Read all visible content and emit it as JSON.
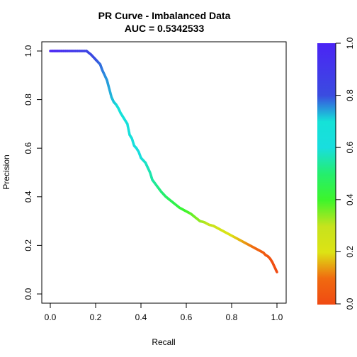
{
  "chart_data": {
    "type": "line",
    "title": "PR Curve - Imbalanced Data",
    "subtitle": "AUC = 0.5342533",
    "xlabel": "Recall",
    "ylabel": "Precision",
    "xlim": [
      0,
      1
    ],
    "ylim": [
      0,
      1
    ],
    "x_ticks": [
      "0.0",
      "0.2",
      "0.4",
      "0.6",
      "0.8",
      "1.0"
    ],
    "y_ticks": [
      "0.0",
      "0.2",
      "0.4",
      "0.6",
      "0.8",
      "1.0"
    ],
    "grid": false,
    "legend": "none",
    "series": [
      {
        "x": [
          0.0,
          0.05,
          0.1,
          0.16,
          0.18,
          0.2,
          0.21,
          0.22,
          0.23,
          0.24,
          0.25,
          0.26,
          0.27,
          0.28,
          0.29,
          0.3,
          0.31,
          0.32,
          0.33,
          0.34,
          0.35,
          0.36,
          0.37,
          0.38,
          0.39,
          0.4,
          0.41,
          0.42,
          0.43,
          0.44,
          0.45,
          0.47,
          0.49,
          0.51,
          0.53,
          0.55,
          0.57,
          0.6,
          0.62,
          0.64,
          0.66,
          0.68,
          0.7,
          0.72,
          0.74,
          0.76,
          0.78,
          0.8,
          0.82,
          0.84,
          0.86,
          0.88,
          0.9,
          0.92,
          0.94,
          0.95,
          0.96,
          0.97,
          0.98,
          0.99,
          1.0
        ],
        "y": [
          1.0,
          1.0,
          1.0,
          1.0,
          0.985,
          0.965,
          0.955,
          0.945,
          0.92,
          0.9,
          0.88,
          0.845,
          0.81,
          0.79,
          0.78,
          0.765,
          0.745,
          0.73,
          0.715,
          0.7,
          0.655,
          0.64,
          0.61,
          0.6,
          0.585,
          0.56,
          0.55,
          0.54,
          0.52,
          0.5,
          0.47,
          0.445,
          0.42,
          0.4,
          0.385,
          0.37,
          0.355,
          0.34,
          0.33,
          0.315,
          0.3,
          0.295,
          0.285,
          0.28,
          0.27,
          0.26,
          0.25,
          0.24,
          0.23,
          0.22,
          0.21,
          0.2,
          0.19,
          0.18,
          0.17,
          0.16,
          0.155,
          0.145,
          0.13,
          0.11,
          0.09
        ]
      }
    ],
    "color_key": {
      "range": [
        0,
        1
      ],
      "ticks": [
        "0.0",
        "0.2",
        "0.4",
        "0.6",
        "0.8",
        "1.0"
      ],
      "stops": [
        {
          "value": 0.0,
          "color": "#f04a12"
        },
        {
          "value": 0.1,
          "color": "#f06a10"
        },
        {
          "value": 0.2,
          "color": "#dde314"
        },
        {
          "value": 0.3,
          "color": "#c6e31d"
        },
        {
          "value": 0.4,
          "color": "#3df52b"
        },
        {
          "value": 0.5,
          "color": "#24ee6e"
        },
        {
          "value": 0.6,
          "color": "#19dede"
        },
        {
          "value": 0.7,
          "color": "#15e2d8"
        },
        {
          "value": 0.8,
          "color": "#3a4ce0"
        },
        {
          "value": 1.0,
          "color": "#4b24f5"
        }
      ]
    }
  }
}
